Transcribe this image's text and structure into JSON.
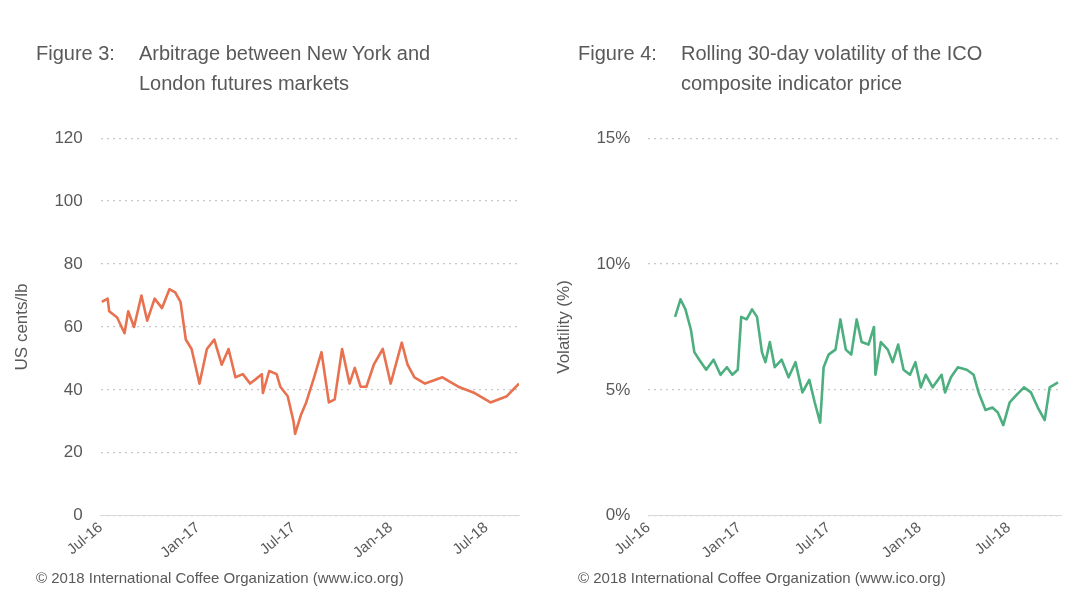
{
  "chart_data": [
    {
      "type": "line",
      "title": "Figure 3:",
      "subtitle": "Arbitrage between New York and London futures markets",
      "ylabel": "US cents/lb",
      "annotations": [
        "© 2018 International Coffee Organization (www.ico.org)"
      ],
      "xlim": [
        "2016-07-01",
        "2018-09-01"
      ],
      "xticks": [
        {
          "value": "2016-07-01",
          "label": "Jul-16"
        },
        {
          "value": "2017-01-01",
          "label": "Jan-17"
        },
        {
          "value": "2017-07-01",
          "label": "Jul-17"
        },
        {
          "value": "2018-01-01",
          "label": "Jan-18"
        },
        {
          "value": "2018-07-01",
          "label": "Jul-18"
        }
      ],
      "ylim": [
        0,
        120
      ],
      "yticks": [
        0,
        20,
        40,
        60,
        80,
        100,
        120
      ],
      "grid": "y",
      "legend": false,
      "marker": "none",
      "series": [
        {
          "color": "#e8714f",
          "x": [
            "2016-07-03",
            "2016-07-14",
            "2016-07-17",
            "2016-08-01",
            "2016-08-15",
            "2016-08-22",
            "2016-09-02",
            "2016-09-16",
            "2016-09-27",
            "2016-10-11",
            "2016-10-25",
            "2016-11-08",
            "2016-11-19",
            "2016-11-29",
            "2016-12-09",
            "2016-12-20",
            "2017-01-04",
            "2017-01-18",
            "2017-02-01",
            "2017-02-15",
            "2017-02-28",
            "2017-03-13",
            "2017-03-27",
            "2017-04-10",
            "2017-05-02",
            "2017-05-04",
            "2017-05-16",
            "2017-05-30",
            "2017-06-06",
            "2017-06-20",
            "2017-07-01",
            "2017-07-04",
            "2017-07-15",
            "2017-07-25",
            "2017-08-09",
            "2017-08-23",
            "2017-09-06",
            "2017-09-17",
            "2017-10-01",
            "2017-10-15",
            "2017-10-25",
            "2017-11-05",
            "2017-11-16",
            "2017-11-30",
            "2017-12-17",
            "2018-01-01",
            "2018-01-22",
            "2018-02-02",
            "2018-02-15",
            "2018-03-07",
            "2018-04-09",
            "2018-05-09",
            "2018-06-09",
            "2018-07-09",
            "2018-08-09",
            "2018-09-01"
          ],
          "values": [
            68,
            69,
            65,
            63,
            58,
            65,
            60,
            70,
            62,
            69,
            66,
            72,
            71,
            68,
            56,
            53,
            42,
            53,
            56,
            48,
            53,
            44,
            45,
            42,
            45,
            39,
            46,
            45,
            41,
            38,
            30,
            26,
            32,
            36,
            44,
            52,
            36,
            37,
            53,
            42,
            47,
            41,
            41,
            48,
            53,
            42,
            55,
            48,
            44,
            42,
            44,
            41,
            39,
            36,
            38,
            42
          ]
        }
      ]
    },
    {
      "type": "line",
      "title": "Figure 4:",
      "subtitle": "Rolling 30-day volatility of the ICO composite indicator price",
      "ylabel": "Volatility (%)",
      "annotations": [
        "© 2018 International Coffee Organization (www.ico.org)"
      ],
      "xlim": [
        "2016-07-01",
        "2018-10-15"
      ],
      "xticks": [
        {
          "value": "2016-07-01",
          "label": "Jul-16"
        },
        {
          "value": "2017-01-01",
          "label": "Jan-17"
        },
        {
          "value": "2017-07-01",
          "label": "Jul-17"
        },
        {
          "value": "2018-01-01",
          "label": "Jan-18"
        },
        {
          "value": "2018-07-01",
          "label": "Jul-18"
        }
      ],
      "ylim": [
        0,
        15
      ],
      "yticks": [
        {
          "value": 0,
          "label": "0%"
        },
        {
          "value": 5,
          "label": "5%"
        },
        {
          "value": 10,
          "label": "10%"
        },
        {
          "value": 15,
          "label": "15%"
        }
      ],
      "grid": "y",
      "legend": false,
      "marker": "none",
      "series": [
        {
          "color": "#4daf7f",
          "x": [
            "2016-08-24",
            "2016-09-04",
            "2016-09-14",
            "2016-09-25",
            "2016-10-02",
            "2016-10-12",
            "2016-10-26",
            "2016-11-10",
            "2016-11-24",
            "2016-12-07",
            "2016-12-18",
            "2016-12-29",
            "2017-01-05",
            "2017-01-16",
            "2017-01-27",
            "2017-02-06",
            "2017-02-16",
            "2017-02-23",
            "2017-03-04",
            "2017-03-14",
            "2017-03-28",
            "2017-04-11",
            "2017-04-25",
            "2017-05-09",
            "2017-05-23",
            "2017-06-03",
            "2017-06-14",
            "2017-06-21",
            "2017-07-01",
            "2017-07-15",
            "2017-07-25",
            "2017-08-05",
            "2017-08-16",
            "2017-08-27",
            "2017-09-06",
            "2017-09-20",
            "2017-10-01",
            "2017-10-04",
            "2017-10-15",
            "2017-10-29",
            "2017-11-08",
            "2017-11-19",
            "2017-11-30",
            "2017-12-13",
            "2017-12-24",
            "2018-01-04",
            "2018-01-14",
            "2018-01-28",
            "2018-02-15",
            "2018-02-22",
            "2018-03-06",
            "2018-03-20",
            "2018-04-07",
            "2018-04-21",
            "2018-05-01",
            "2018-05-15",
            "2018-05-29",
            "2018-06-09",
            "2018-06-20",
            "2018-07-03",
            "2018-07-17",
            "2018-08-01",
            "2018-08-15",
            "2018-08-29",
            "2018-09-12",
            "2018-09-22",
            "2018-10-09"
          ],
          "values": [
            7.9,
            8.6,
            8.2,
            7.4,
            6.5,
            6.2,
            5.8,
            6.2,
            5.6,
            5.9,
            5.6,
            5.8,
            7.9,
            7.8,
            8.2,
            7.9,
            6.5,
            6.1,
            6.9,
            5.9,
            6.2,
            5.5,
            6.1,
            4.9,
            5.4,
            4.5,
            3.7,
            5.9,
            6.4,
            6.6,
            7.8,
            6.6,
            6.4,
            7.8,
            6.9,
            6.8,
            7.5,
            5.6,
            6.9,
            6.6,
            6.1,
            6.8,
            5.8,
            5.6,
            6.1,
            5.1,
            5.6,
            5.1,
            5.6,
            4.9,
            5.5,
            5.9,
            5.8,
            5.6,
            4.9,
            4.2,
            4.3,
            4.1,
            3.6,
            4.5,
            4.8,
            5.1,
            4.9,
            4.3,
            3.8,
            5.1,
            5.3
          ]
        }
      ]
    }
  ]
}
